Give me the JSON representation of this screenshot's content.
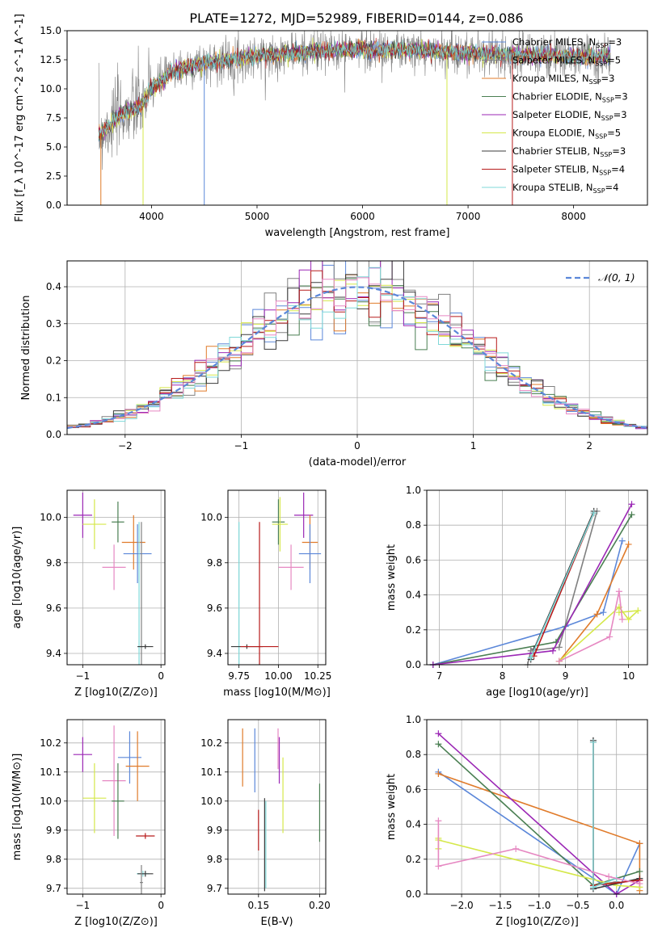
{
  "figure_title": "PLATE=1272, MJD=52989, FIBERID=0144, z=0.086",
  "series_colors": {
    "Chabrier MILES": "#5b87d9",
    "Salpeter MILES": "#808080",
    "Kroupa MILES": "#e07b2a",
    "Chabrier ELODIE": "#4a7f52",
    "Salpeter ELODIE": "#9b27b5",
    "Kroupa ELODIE": "#d5e84a",
    "Chabrier STELIB": "#3b3b3b",
    "Salpeter STELIB": "#b71b1b",
    "Kroupa STELIB": "#7fd8d8",
    "pink": "#e688c2",
    "gauss": "#5b87d9"
  },
  "chart_data": [
    {
      "id": "spectrum",
      "type": "line",
      "title": "PLATE=1272, MJD=52989, FIBERID=0144, z=0.086",
      "xlabel": "wavelength [Angstrom, rest frame]",
      "ylabel": "Flux [f_λ 10^-17 erg cm^-2 s^-1 A^-1]",
      "xlim": [
        3200,
        8700
      ],
      "ylim": [
        0,
        15
      ],
      "xticks": [
        "4000",
        "5000",
        "6000",
        "7000",
        "8000"
      ],
      "yticks": [
        "0.0",
        "2.5",
        "5.0",
        "7.5",
        "10.0",
        "12.5",
        "15.0"
      ],
      "legend": [
        "Chabrier MILES, N_SSP=3",
        "Salpeter MILES, N_SSP=5",
        "Kroupa MILES, N_SSP=3",
        "Chabrier ELODIE, N_SSP=3",
        "Salpeter ELODIE, N_SSP=3",
        "Kroupa ELODIE, N_SSP=5",
        "Chabrier STELIB, N_SSP=3",
        "Salpeter STELIB, N_SSP=4",
        "Kroupa STELIB, N_SSP=4"
      ],
      "legend_placement": "right",
      "continuum_points": [
        [
          3500,
          6.0
        ],
        [
          3700,
          7.8
        ],
        [
          3900,
          8.5
        ],
        [
          4000,
          10.0
        ],
        [
          4200,
          11.5
        ],
        [
          4500,
          12.2
        ],
        [
          5000,
          12.8
        ],
        [
          5500,
          13.2
        ],
        [
          6000,
          13.4
        ],
        [
          6500,
          13.3
        ],
        [
          7000,
          13.1
        ],
        [
          7500,
          12.9
        ],
        [
          8000,
          12.8
        ],
        [
          8300,
          12.8
        ]
      ],
      "model_range": [
        3500,
        8350
      ],
      "data_range": [
        3500,
        8350
      ]
    },
    {
      "id": "residuals",
      "type": "bar",
      "xlabel": "(data-model)/error",
      "ylabel": "Normed distribution",
      "xlim": [
        -2.5,
        2.5
      ],
      "ylim": [
        0,
        0.47
      ],
      "xticks": [
        "−2",
        "−1",
        "0",
        "1",
        "2"
      ],
      "yticks": [
        "0.0",
        "0.1",
        "0.2",
        "0.3",
        "0.4"
      ],
      "grid": true,
      "legend": [
        "𝒩(0, 1)"
      ],
      "legend_placement": "top-right",
      "bin_width": 0.1
    },
    {
      "id": "age_vs_Z",
      "type": "scatter",
      "xlabel": "Z [log10(Z/Z⊙)]",
      "ylabel": "age  [log10(age/yr)]",
      "xlim": [
        -1.2,
        0.05
      ],
      "ylim": [
        9.35,
        10.12
      ],
      "xticks": [
        "−1",
        "0"
      ],
      "yticks": [
        "9.4",
        "9.6",
        "9.8",
        "10.0"
      ],
      "points": [
        {
          "series": "Salpeter ELODIE",
          "x": -1.0,
          "y": 10.01,
          "xerr": 0.12,
          "yerr": 0.1
        },
        {
          "series": "Kroupa ELODIE",
          "x": -0.85,
          "y": 9.97,
          "xerr": 0.15,
          "yerr": 0.11
        },
        {
          "series": "Chabrier ELODIE",
          "x": -0.55,
          "y": 9.98,
          "xerr": 0.08,
          "yerr": 0.09
        },
        {
          "series": "Kroupa MILES",
          "x": -0.35,
          "y": 9.89,
          "xerr": 0.15,
          "yerr": 0.12
        },
        {
          "series": "Chabrier MILES",
          "x": -0.3,
          "y": 9.84,
          "xerr": 0.18,
          "yerr": 0.13
        },
        {
          "series": "pink",
          "x": -0.6,
          "y": 9.78,
          "xerr": 0.15,
          "yerr": 0.1
        },
        {
          "series": "Salpeter MILES",
          "x": -0.25,
          "y": 9.43,
          "xerr": 0.02,
          "yerr": 0.55
        },
        {
          "series": "Kroupa STELIB",
          "x": -0.28,
          "y": 9.43,
          "xerr": 0.02,
          "yerr": 0.55
        },
        {
          "series": "Chabrier STELIB",
          "x": -0.2,
          "y": 9.43,
          "xerr": 0.1,
          "yerr": 0.01
        }
      ]
    },
    {
      "id": "age_vs_mass",
      "type": "scatter",
      "xlabel": "mass [log10(M/M⊙)]",
      "xlim": [
        9.68,
        10.3
      ],
      "ylim": [
        9.35,
        10.12
      ],
      "xticks": [
        "9.75",
        "10.00",
        "10.25"
      ],
      "yticks": [
        "9.4",
        "9.6",
        "9.8",
        "10.0"
      ],
      "points": [
        {
          "series": "Kroupa STELIB",
          "x": 9.75,
          "y": 9.43,
          "xerr": 0.01,
          "yerr": 0.55
        },
        {
          "series": "Chabrier STELIB",
          "x": 9.8,
          "y": 9.43,
          "xerr": 0.1,
          "yerr": 0.01
        },
        {
          "series": "Salpeter STELIB",
          "x": 9.88,
          "y": 9.43,
          "xerr": 0.12,
          "yerr": 0.55
        },
        {
          "series": "Chabrier ELODIE",
          "x": 10.0,
          "y": 9.98,
          "xerr": 0.04,
          "yerr": 0.1
        },
        {
          "series": "Kroupa ELODIE",
          "x": 10.01,
          "y": 9.97,
          "xerr": 0.05,
          "yerr": 0.12
        },
        {
          "series": "Salpeter ELODIE",
          "x": 10.16,
          "y": 10.01,
          "xerr": 0.06,
          "yerr": 0.1
        },
        {
          "series": "Kroupa MILES",
          "x": 10.2,
          "y": 9.89,
          "xerr": 0.05,
          "yerr": 0.12
        },
        {
          "series": "Chabrier MILES",
          "x": 10.2,
          "y": 9.84,
          "xerr": 0.07,
          "yerr": 0.13
        },
        {
          "series": "pink",
          "x": 10.08,
          "y": 9.78,
          "xerr": 0.08,
          "yerr": 0.1
        }
      ]
    },
    {
      "id": "massweight_vs_age",
      "type": "line",
      "xlabel": "age  [log10(age/yr)]",
      "ylabel": "mass weight",
      "xlim": [
        6.8,
        10.3
      ],
      "ylim": [
        0,
        1.0
      ],
      "xticks": [
        "7",
        "8",
        "9",
        "10"
      ],
      "yticks": [
        "0.0",
        "0.2",
        "0.4",
        "0.6",
        "0.8",
        "1.0"
      ],
      "series": [
        {
          "name": "Chabrier MILES",
          "points": [
            [
              6.9,
              0.0
            ],
            [
              9.0,
              0.22
            ],
            [
              9.6,
              0.3
            ],
            [
              9.9,
              0.71
            ]
          ]
        },
        {
          "name": "Salpeter MILES",
          "points": [
            [
              8.4,
              0.0
            ],
            [
              8.45,
              0.08
            ],
            [
              8.9,
              0.1
            ],
            [
              9.5,
              0.88
            ]
          ]
        },
        {
          "name": "Kroupa MILES",
          "points": [
            [
              8.9,
              0.02
            ],
            [
              9.5,
              0.29
            ],
            [
              10.0,
              0.69
            ]
          ]
        },
        {
          "name": "Chabrier ELODIE",
          "points": [
            [
              6.9,
              0.0
            ],
            [
              8.85,
              0.13
            ],
            [
              10.05,
              0.86
            ]
          ]
        },
        {
          "name": "Salpeter ELODIE",
          "points": [
            [
              6.9,
              0.0
            ],
            [
              8.8,
              0.08
            ],
            [
              10.05,
              0.92
            ]
          ]
        },
        {
          "name": "Kroupa ELODIE",
          "points": [
            [
              8.9,
              0.02
            ],
            [
              9.85,
              0.33
            ],
            [
              10.0,
              0.26
            ],
            [
              10.15,
              0.31
            ],
            [
              9.85,
              0.3
            ]
          ]
        },
        {
          "name": "Chabrier STELIB",
          "points": [
            [
              8.45,
              0.03
            ],
            [
              8.5,
              0.09
            ],
            [
              9.45,
              0.88
            ]
          ]
        },
        {
          "name": "Salpeter STELIB",
          "points": [
            [
              8.5,
              0.05
            ],
            [
              9.45,
              0.87
            ]
          ]
        },
        {
          "name": "Kroupa STELIB",
          "points": [
            [
              8.45,
              0.04
            ],
            [
              9.45,
              0.87
            ]
          ]
        },
        {
          "name": "pink",
          "points": [
            [
              8.9,
              0.02
            ],
            [
              9.7,
              0.16
            ],
            [
              9.85,
              0.42
            ],
            [
              9.9,
              0.26
            ]
          ]
        }
      ]
    },
    {
      "id": "mass_vs_Z",
      "type": "scatter",
      "xlabel": "Z [log10(Z/Z⊙)]",
      "ylabel": "mass [log10(M/M⊙)]",
      "xlim": [
        -1.2,
        0.05
      ],
      "ylim": [
        9.68,
        10.28
      ],
      "xticks": [
        "−1",
        "0"
      ],
      "yticks": [
        "9.7",
        "9.8",
        "9.9",
        "10.0",
        "10.1",
        "10.2"
      ],
      "points": [
        {
          "series": "Salpeter ELODIE",
          "x": -1.0,
          "y": 10.16,
          "xerr": 0.12,
          "yerr": 0.06
        },
        {
          "series": "Kroupa ELODIE",
          "x": -0.85,
          "y": 10.01,
          "xerr": 0.15,
          "yerr": 0.12
        },
        {
          "series": "pink",
          "x": -0.6,
          "y": 10.07,
          "xerr": 0.15,
          "yerr": 0.19
        },
        {
          "series": "Chabrier ELODIE",
          "x": -0.55,
          "y": 10.0,
          "xerr": 0.08,
          "yerr": 0.13
        },
        {
          "series": "Chabrier MILES",
          "x": -0.4,
          "y": 10.15,
          "xerr": 0.15,
          "yerr": 0.09
        },
        {
          "series": "Kroupa MILES",
          "x": -0.3,
          "y": 10.12,
          "xerr": 0.15,
          "yerr": 0.12
        },
        {
          "series": "Salpeter STELIB",
          "x": -0.2,
          "y": 9.88,
          "xerr": 0.12,
          "yerr": 0.01
        },
        {
          "series": "Kroupa STELIB",
          "x": -0.23,
          "y": 9.75,
          "xerr": 0.08,
          "yerr": 0.01
        },
        {
          "series": "Chabrier STELIB",
          "x": -0.2,
          "y": 9.75,
          "xerr": 0.1,
          "yerr": 0.01
        },
        {
          "series": "Salpeter MILES",
          "x": -0.25,
          "y": 9.72,
          "xerr": 0.02,
          "yerr": 0.06
        }
      ]
    },
    {
      "id": "mass_vs_EBV",
      "type": "scatter",
      "xlabel": "E(B-V)",
      "xlim": [
        0.125,
        0.205
      ],
      "ylim": [
        9.68,
        10.28
      ],
      "xticks": [
        "0.15",
        "0.20"
      ],
      "yticks": [
        "9.7",
        "9.8",
        "9.9",
        "10.0",
        "10.1",
        "10.2"
      ],
      "points": [
        {
          "series": "Kroupa MILES",
          "x": 0.137,
          "y": 10.15,
          "yerr": 0.1
        },
        {
          "series": "Chabrier MILES",
          "x": 0.147,
          "y": 10.14,
          "yerr": 0.11
        },
        {
          "series": "Salpeter STELIB",
          "x": 0.15,
          "y": 9.9,
          "yerr": 0.07
        },
        {
          "series": "Chabrier STELIB",
          "x": 0.155,
          "y": 9.85,
          "yerr": 0.16
        },
        {
          "series": "Kroupa STELIB",
          "x": 0.156,
          "y": 9.85,
          "yerr": 0.15
        },
        {
          "series": "pink",
          "x": 0.166,
          "y": 10.18,
          "yerr": 0.07
        },
        {
          "series": "Salpeter ELODIE",
          "x": 0.167,
          "y": 10.14,
          "yerr": 0.08
        },
        {
          "series": "Kroupa ELODIE",
          "x": 0.17,
          "y": 10.02,
          "yerr": 0.13
        },
        {
          "series": "Chabrier ELODIE",
          "x": 0.2,
          "y": 9.96,
          "yerr": 0.1
        }
      ]
    },
    {
      "id": "massweight_vs_Z",
      "type": "line",
      "xlabel": "Z [log10(Z/Z⊙)]",
      "ylabel": "mass weight",
      "xlim": [
        -2.45,
        0.4
      ],
      "ylim": [
        0,
        1.0
      ],
      "xticks": [
        "−2.0",
        "−1.5",
        "−1.0",
        "−0.5",
        "0.0"
      ],
      "yticks": [
        "0.0",
        "0.2",
        "0.4",
        "0.6",
        "0.8",
        "1.0"
      ],
      "series": [
        {
          "name": "Chabrier MILES",
          "points": [
            [
              -2.3,
              0.7
            ],
            [
              0.0,
              0.0
            ],
            [
              0.3,
              0.29
            ]
          ]
        },
        {
          "name": "Salpeter MILES",
          "points": [
            [
              -0.3,
              0.88
            ],
            [
              -0.3,
              0.05
            ],
            [
              0.0,
              0.07
            ]
          ]
        },
        {
          "name": "Kroupa MILES",
          "points": [
            [
              -2.3,
              0.69
            ],
            [
              0.3,
              0.29
            ],
            [
              0.3,
              0.02
            ]
          ]
        },
        {
          "name": "Chabrier ELODIE",
          "points": [
            [
              -2.3,
              0.86
            ],
            [
              -0.3,
              0.05
            ],
            [
              0.3,
              0.13
            ]
          ]
        },
        {
          "name": "Salpeter ELODIE",
          "points": [
            [
              -2.3,
              0.92
            ],
            [
              0.0,
              0.0
            ],
            [
              0.3,
              0.08
            ]
          ]
        },
        {
          "name": "Kroupa ELODIE",
          "points": [
            [
              -2.3,
              0.32
            ],
            [
              -2.3,
              0.26
            ],
            [
              -2.3,
              0.31
            ],
            [
              0.0,
              0.05
            ],
            [
              0.3,
              0.04
            ]
          ]
        },
        {
          "name": "Chabrier STELIB",
          "points": [
            [
              -0.3,
              0.88
            ],
            [
              -0.3,
              0.03
            ],
            [
              0.3,
              0.09
            ]
          ]
        },
        {
          "name": "Salpeter STELIB",
          "points": [
            [
              -0.3,
              0.87
            ],
            [
              -0.3,
              0.05
            ],
            [
              0.3,
              0.08
            ]
          ]
        },
        {
          "name": "Kroupa STELIB",
          "points": [
            [
              -0.3,
              0.87
            ],
            [
              -0.3,
              0.04
            ],
            [
              0.0,
              0.09
            ]
          ]
        },
        {
          "name": "pink",
          "points": [
            [
              -2.3,
              0.42
            ],
            [
              -2.3,
              0.16
            ],
            [
              -1.3,
              0.26
            ],
            [
              -0.1,
              0.1
            ],
            [
              0.3,
              0.06
            ]
          ]
        }
      ]
    }
  ]
}
